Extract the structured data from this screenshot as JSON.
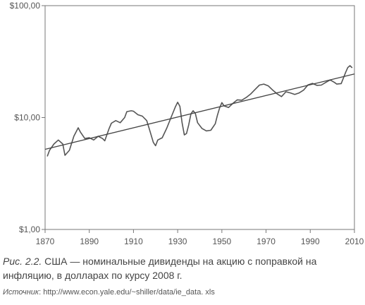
{
  "chart_data": {
    "type": "line",
    "title": "",
    "xlabel": "",
    "ylabel": "",
    "yscale": "log",
    "xlim": [
      1870,
      2010
    ],
    "ylim": [
      1,
      100
    ],
    "grid": false,
    "x_ticks": [
      "1870",
      "1890",
      "1910",
      "1930",
      "1950",
      "1970",
      "1990",
      "2010"
    ],
    "y_ticks": [
      "$1,00",
      "$10,00",
      "$100,00"
    ],
    "x_tick_values": [
      1870,
      1890,
      1910,
      1930,
      1950,
      1970,
      1990,
      2010
    ],
    "y_tick_values": [
      1,
      10,
      100
    ],
    "series": [
      {
        "role": "data",
        "color": "#555555",
        "points": [
          [
            1871,
            4.5
          ],
          [
            1872,
            5.1
          ],
          [
            1874,
            5.8
          ],
          [
            1876,
            6.3
          ],
          [
            1878,
            5.8
          ],
          [
            1879,
            4.6
          ],
          [
            1881,
            5.1
          ],
          [
            1883,
            6.8
          ],
          [
            1885,
            8.1
          ],
          [
            1886,
            7.4
          ],
          [
            1888,
            6.5
          ],
          [
            1890,
            6.6
          ],
          [
            1892,
            6.3
          ],
          [
            1894,
            6.8
          ],
          [
            1896,
            6.5
          ],
          [
            1897,
            6.2
          ],
          [
            1899,
            8.0
          ],
          [
            1900,
            8.9
          ],
          [
            1902,
            9.4
          ],
          [
            1904,
            9.0
          ],
          [
            1906,
            10.0
          ],
          [
            1907,
            11.3
          ],
          [
            1909,
            11.5
          ],
          [
            1910,
            11.4
          ],
          [
            1912,
            10.6
          ],
          [
            1914,
            10.3
          ],
          [
            1916,
            9.4
          ],
          [
            1917,
            8.1
          ],
          [
            1919,
            6.0
          ],
          [
            1920,
            5.6
          ],
          [
            1921,
            6.3
          ],
          [
            1923,
            6.6
          ],
          [
            1925,
            8.0
          ],
          [
            1927,
            10.0
          ],
          [
            1929,
            12.5
          ],
          [
            1930,
            13.7
          ],
          [
            1931,
            12.6
          ],
          [
            1932,
            9.0
          ],
          [
            1933,
            7.0
          ],
          [
            1934,
            7.2
          ],
          [
            1935,
            8.6
          ],
          [
            1936,
            10.8
          ],
          [
            1937,
            11.5
          ],
          [
            1938,
            10.9
          ],
          [
            1939,
            9.0
          ],
          [
            1941,
            8.0
          ],
          [
            1943,
            7.6
          ],
          [
            1945,
            7.7
          ],
          [
            1947,
            8.8
          ],
          [
            1948,
            10.5
          ],
          [
            1949,
            12.2
          ],
          [
            1950,
            13.6
          ],
          [
            1951,
            12.7
          ],
          [
            1953,
            12.3
          ],
          [
            1955,
            13.4
          ],
          [
            1957,
            14.4
          ],
          [
            1959,
            14.3
          ],
          [
            1961,
            15.1
          ],
          [
            1963,
            16.2
          ],
          [
            1965,
            17.8
          ],
          [
            1967,
            19.5
          ],
          [
            1969,
            19.9
          ],
          [
            1971,
            19.2
          ],
          [
            1973,
            17.6
          ],
          [
            1975,
            16.3
          ],
          [
            1977,
            15.4
          ],
          [
            1979,
            17.0
          ],
          [
            1981,
            16.6
          ],
          [
            1983,
            16.1
          ],
          [
            1985,
            16.6
          ],
          [
            1987,
            17.6
          ],
          [
            1989,
            19.6
          ],
          [
            1991,
            20.2
          ],
          [
            1993,
            19.4
          ],
          [
            1995,
            19.5
          ],
          [
            1997,
            20.6
          ],
          [
            1999,
            21.7
          ],
          [
            2001,
            20.6
          ],
          [
            2002,
            19.9
          ],
          [
            2004,
            20.1
          ],
          [
            2005,
            22.5
          ],
          [
            2006,
            25.3
          ],
          [
            2007,
            28.0
          ],
          [
            2008,
            29.1
          ],
          [
            2009,
            27.8
          ]
        ]
      },
      {
        "role": "trend",
        "color": "#444444",
        "points": [
          [
            1870,
            5.2
          ],
          [
            2010,
            24.5
          ]
        ]
      }
    ]
  },
  "caption": {
    "fig_label": "Рис. 2.2.",
    "text": "США — номинальные дивиденды на акцию с поправкой на инфляцию, в долларах по курсу 2008 г."
  },
  "source": {
    "label": "Источник",
    "text": ": http://www.econ.yale.edu/~shiller/data/ie_data. xls"
  }
}
